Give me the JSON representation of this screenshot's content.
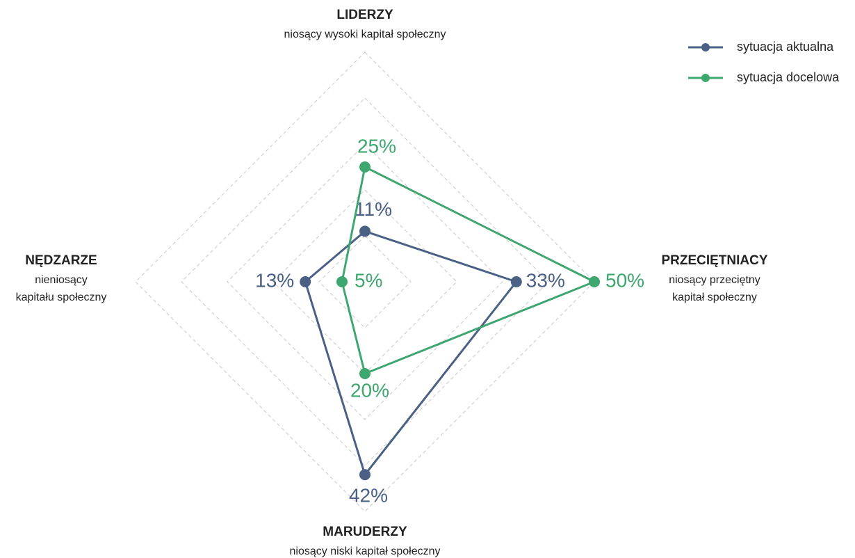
{
  "chart_data": {
    "type": "radar",
    "categories": [
      "LIDERZY",
      "PRZECIĘTNIACY",
      "MARUDERZY",
      "NĘDZARZE"
    ],
    "category_subtitles": [
      [
        "niosący wysoki kapitał społeczny"
      ],
      [
        "niosący przeciętny",
        "kapitał społeczny"
      ],
      [
        "niosący niski kapitał społeczny"
      ],
      [
        "nieniosący",
        "kapitału społeczny"
      ]
    ],
    "series": [
      {
        "name": "sytuacja aktualna",
        "color": "#4a6185",
        "values": [
          11,
          33,
          42,
          13
        ],
        "value_labels": [
          "11%",
          "33%",
          "42%",
          "13%"
        ]
      },
      {
        "name": "sytuacja docelowa",
        "color": "#3ea66f",
        "values": [
          25,
          50,
          20,
          5
        ],
        "value_labels": [
          "25%",
          "50%",
          "20%",
          "5%"
        ]
      }
    ],
    "rlim": [
      0,
      50
    ],
    "rticks": [
      10,
      20,
      30,
      40,
      50
    ],
    "grid": true,
    "legend": "top-right"
  }
}
